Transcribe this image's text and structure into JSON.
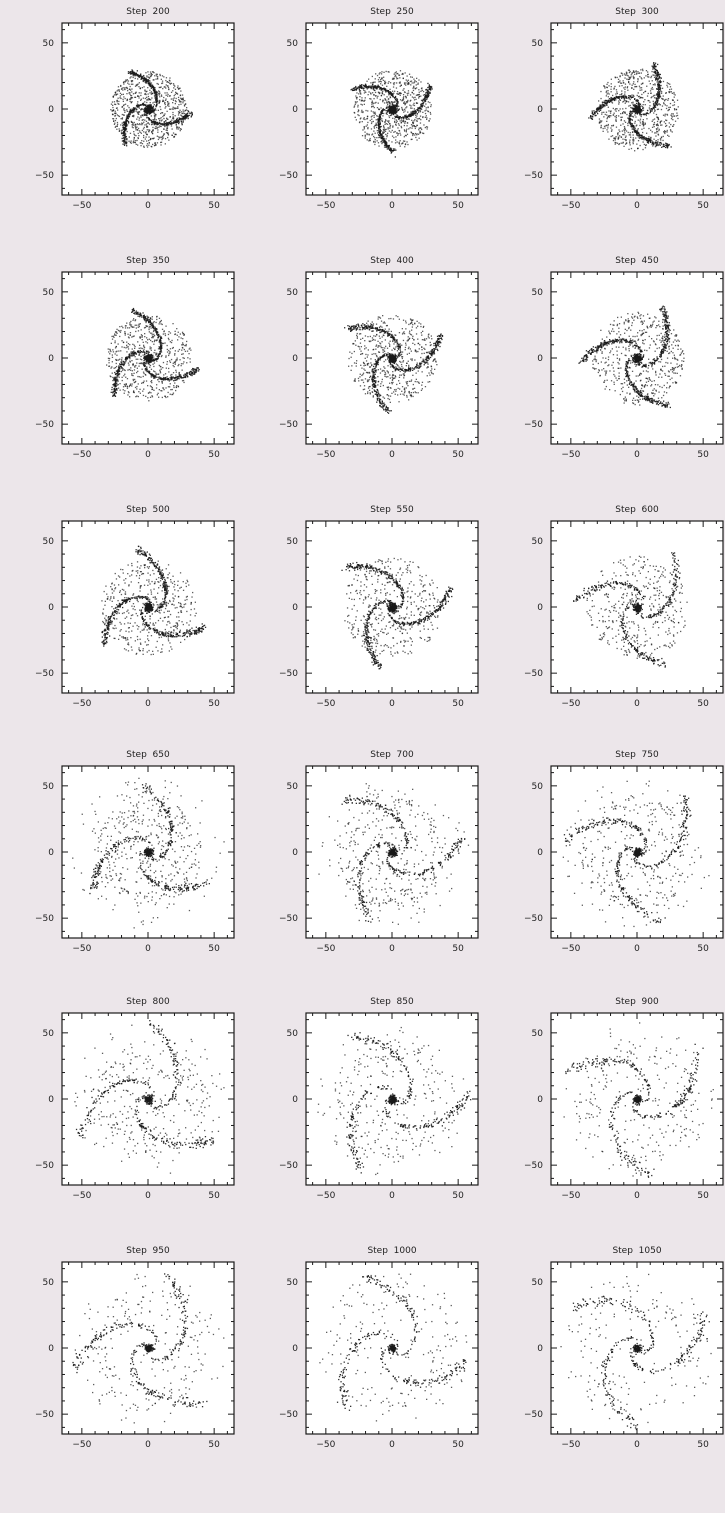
{
  "colors": {
    "background": "#ece6ea",
    "plot_bg": "#ffffff",
    "ink": "#1a1a1a"
  },
  "chart_data": [
    {
      "type": "scatter",
      "title": "Step  200",
      "xlim": [
        -65,
        65
      ],
      "ylim": [
        -65,
        65
      ],
      "xticks": [
        -50,
        0,
        50
      ],
      "yticks": [
        -50,
        0,
        50
      ],
      "grid": false,
      "pattern": "compact dense disk, no distinct arms"
    },
    {
      "type": "scatter",
      "title": "Step  250",
      "xlim": [
        -65,
        65
      ],
      "ylim": [
        -65,
        65
      ],
      "xticks": [
        -50,
        0,
        50
      ],
      "yticks": [
        -50,
        0,
        50
      ],
      "grid": false,
      "pattern": "dense disk, faint spiral arms"
    },
    {
      "type": "scatter",
      "title": "Step  300",
      "xlim": [
        -65,
        65
      ],
      "ylim": [
        -65,
        65
      ],
      "xticks": [
        -50,
        0,
        50
      ],
      "yticks": [
        -50,
        0,
        50
      ],
      "grid": false,
      "pattern": "tightly wound spiral arms in dense disk"
    },
    {
      "type": "scatter",
      "title": "Step  350",
      "xlim": [
        -65,
        65
      ],
      "ylim": [
        -65,
        65
      ],
      "xticks": [
        -50,
        0,
        50
      ],
      "yticks": [
        -50,
        0,
        50
      ],
      "grid": false,
      "pattern": "three-arm spiral with scattered halo"
    },
    {
      "type": "scatter",
      "title": "Step  400",
      "xlim": [
        -65,
        65
      ],
      "ylim": [
        -65,
        65
      ],
      "xticks": [
        -50,
        0,
        50
      ],
      "yticks": [
        -50,
        0,
        50
      ],
      "grid": false,
      "pattern": "strong three-arm spiral, radius ~30"
    },
    {
      "type": "scatter",
      "title": "Step  450",
      "xlim": [
        -65,
        65
      ],
      "ylim": [
        -65,
        65
      ],
      "xticks": [
        -50,
        0,
        50
      ],
      "yticks": [
        -50,
        0,
        50
      ],
      "grid": false,
      "pattern": "three-arm spiral expanding outward"
    },
    {
      "type": "scatter",
      "title": "Step  500",
      "xlim": [
        -65,
        65
      ],
      "ylim": [
        -65,
        65
      ],
      "xticks": [
        -50,
        0,
        50
      ],
      "yticks": [
        -50,
        0,
        50
      ],
      "grid": false,
      "pattern": "open spiral arms, radius ~40"
    },
    {
      "type": "scatter",
      "title": "Step  550",
      "xlim": [
        -65,
        65
      ],
      "ylim": [
        -65,
        65
      ],
      "xticks": [
        -50,
        0,
        50
      ],
      "yticks": [
        -50,
        0,
        50
      ],
      "grid": false,
      "pattern": "open spiral, outer arms to ~45"
    },
    {
      "type": "scatter",
      "title": "Step  600",
      "xlim": [
        -65,
        65
      ],
      "ylim": [
        -65,
        65
      ],
      "xticks": [
        -50,
        0,
        50
      ],
      "yticks": [
        -50,
        0,
        50
      ],
      "grid": false,
      "pattern": "fragmenting outer arms, bright core"
    },
    {
      "type": "scatter",
      "title": "Step  650",
      "xlim": [
        -65,
        65
      ],
      "ylim": [
        -65,
        65
      ],
      "xticks": [
        -50,
        0,
        50
      ],
      "yticks": [
        -50,
        0,
        50
      ],
      "grid": false,
      "pattern": "clumpy outer arms to ~50"
    },
    {
      "type": "scatter",
      "title": "Step  700",
      "xlim": [
        -65,
        65
      ],
      "ylim": [
        -65,
        65
      ],
      "xticks": [
        -50,
        0,
        50
      ],
      "yticks": [
        -50,
        0,
        50
      ],
      "grid": false,
      "pattern": "clumpy spiral arms, sparse halo"
    },
    {
      "type": "scatter",
      "title": "Step  750",
      "xlim": [
        -65,
        65
      ],
      "ylim": [
        -65,
        65
      ],
      "xticks": [
        -50,
        0,
        50
      ],
      "yticks": [
        -50,
        0,
        50
      ],
      "grid": false,
      "pattern": "wide open arms to ~55"
    },
    {
      "type": "scatter",
      "title": "Step  800",
      "xlim": [
        -65,
        65
      ],
      "ylim": [
        -65,
        65
      ],
      "xticks": [
        -50,
        0,
        50
      ],
      "yticks": [
        -50,
        0,
        50
      ],
      "grid": false,
      "pattern": "dispersed clumpy arms, compact core"
    },
    {
      "type": "scatter",
      "title": "Step  850",
      "xlim": [
        -65,
        65
      ],
      "ylim": [
        -65,
        65
      ],
      "xticks": [
        -50,
        0,
        50
      ],
      "yticks": [
        -50,
        0,
        50
      ],
      "grid": false,
      "pattern": "dispersed clumps, compact core"
    },
    {
      "type": "scatter",
      "title": "Step  900",
      "xlim": [
        -65,
        65
      ],
      "ylim": [
        -65,
        65
      ],
      "xticks": [
        -50,
        0,
        50
      ],
      "yticks": [
        -50,
        0,
        50
      ],
      "grid": false,
      "pattern": "sparse clumps around compact core"
    },
    {
      "type": "scatter",
      "title": "Step  950",
      "xlim": [
        -65,
        65
      ],
      "ylim": [
        -65,
        65
      ],
      "xticks": [
        -50,
        0,
        50
      ],
      "yticks": [
        -50,
        0,
        50
      ],
      "grid": false,
      "pattern": "sparse outer debris, compact spiral core"
    },
    {
      "type": "scatter",
      "title": "Step  1000",
      "xlim": [
        -65,
        65
      ],
      "ylim": [
        -65,
        65
      ],
      "xticks": [
        -50,
        0,
        50
      ],
      "yticks": [
        -50,
        0,
        50
      ],
      "grid": false,
      "pattern": "sparse debris, compact spiral core"
    },
    {
      "type": "scatter",
      "title": "Step  1050",
      "xlim": [
        -65,
        65
      ],
      "ylim": [
        -65,
        65
      ],
      "xticks": [
        -50,
        0,
        50
      ],
      "yticks": [
        -50,
        0,
        50
      ],
      "grid": false,
      "pattern": "very sparse debris, compact core"
    }
  ]
}
